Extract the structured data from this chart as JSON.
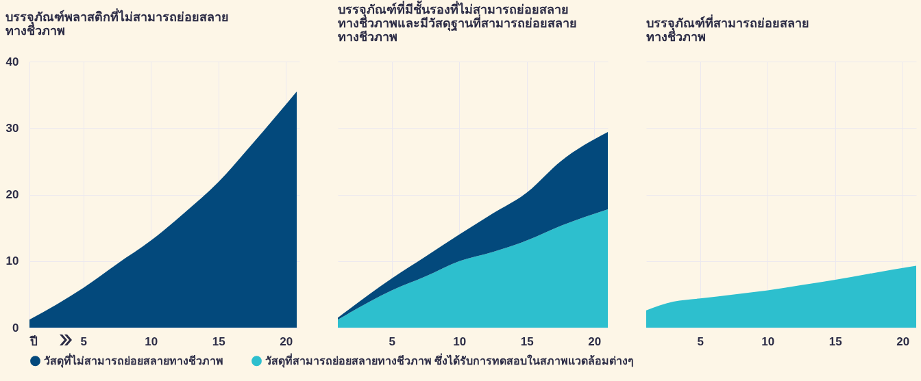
{
  "chart_data": [
    {
      "type": "area",
      "title": "บรรจุภัณฑ์พลาสติกที่ไม่สามารถย่อยสลาย\nทางชีวภาพ",
      "xlim": [
        1,
        21
      ],
      "xticks": [
        {
          "value": 1,
          "label": "ปี"
        },
        5,
        10,
        15,
        20
      ],
      "ylim": [
        0,
        40
      ],
      "yticks": [
        0,
        10,
        20,
        30,
        40
      ],
      "grid": true,
      "legend": "bottom",
      "series": [
        {
          "name": "วัสดุที่ไม่สามารถย่อยสลายทางชีวภาพ",
          "color": "#03497c",
          "x": [
            1,
            5,
            7.5,
            10,
            12.5,
            15,
            17.5,
            20.8
          ],
          "values": [
            1.2,
            6.0,
            9.6,
            13.1,
            17.3,
            21.9,
            27.6,
            35.5
          ]
        }
      ]
    },
    {
      "type": "area",
      "title": "บรรจุภัณฑ์ที่มีชั้นรองที่ไม่สามารถย่อยสลาย\nทางชีวภาพและมีวัสดุฐานที่สามารถย่อยสลาย\nทางชีวภาพ",
      "xlim": [
        1,
        21
      ],
      "xticks": [
        5,
        10,
        15,
        20
      ],
      "ylim": [
        0,
        40
      ],
      "yticks": [
        0,
        10,
        20,
        30,
        40
      ],
      "grid": true,
      "tick_labels": "x",
      "stacked": true,
      "legend": "bottom",
      "series": [
        {
          "name": "วัสดุที่สามารถย่อยสลายทางชีวภาพ ซึ่งได้รับการทดสอบในสภาพแวดล้อมต่างๆ",
          "color": "#2dbfce",
          "x": [
            1,
            5,
            7.5,
            10,
            12.5,
            15,
            17.5,
            21
          ],
          "values": [
            1.2,
            5.6,
            7.7,
            10.0,
            11.4,
            13.1,
            15.3,
            17.8
          ]
        },
        {
          "name": "วัสดุที่ไม่สามารถย่อยสลายทางชีวภาพ",
          "color": "#03497c",
          "x": [
            1,
            5,
            7.5,
            10,
            12.5,
            15,
            17.5,
            21
          ],
          "values": [
            0.3,
            1.8,
            3.0,
            4.0,
            5.8,
            7.2,
            9.7,
            11.6
          ]
        }
      ]
    },
    {
      "type": "area",
      "title": "บรรจุภัณฑ์ที่สามารถย่อยสลาย\nทางชีวภาพ",
      "xlim": [
        1,
        21
      ],
      "xticks": [
        5,
        10,
        15,
        20
      ],
      "ylim": [
        0,
        40
      ],
      "yticks": [
        0,
        10,
        20,
        30,
        40
      ],
      "grid": true,
      "tick_labels": "x",
      "legend": "bottom",
      "series": [
        {
          "name": "วัสดุที่สามารถย่อยสลายทางชีวภาพ ซึ่งได้รับการทดสอบในสภาพแวดล้อมต่างๆ",
          "color": "#2dbfce",
          "x": [
            1,
            3,
            5,
            7.5,
            10,
            12.5,
            15,
            17.5,
            21
          ],
          "values": [
            2.6,
            3.9,
            4.4,
            5.0,
            5.6,
            6.4,
            7.2,
            8.1,
            9.3
          ]
        }
      ]
    }
  ]
}
